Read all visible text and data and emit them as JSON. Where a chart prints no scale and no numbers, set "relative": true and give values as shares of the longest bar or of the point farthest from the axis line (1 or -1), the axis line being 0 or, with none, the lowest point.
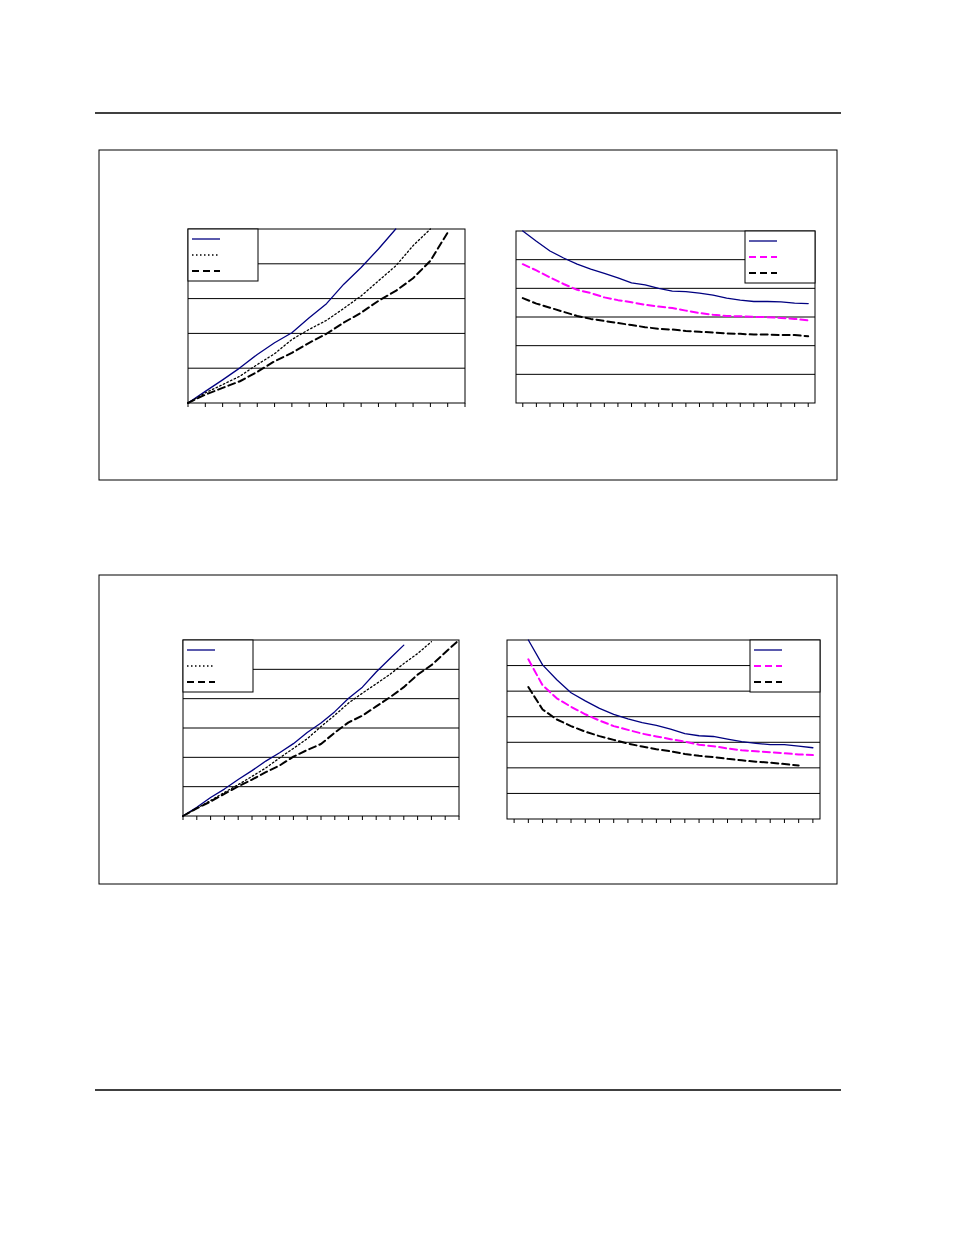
{
  "chart_data": [
    {
      "type": "line",
      "relative": true,
      "grid": "y",
      "categories": [
        null,
        null,
        null,
        null,
        null,
        null,
        null,
        null,
        null,
        null,
        null,
        null,
        null,
        null,
        null,
        null,
        null
      ],
      "series": [
        {
          "color": "#000080",
          "line_style": "solid",
          "values": [
            0,
            0.067,
            0.133,
            0.202,
            0.279,
            0.346,
            0.404,
            0.49,
            0.571,
            0.683,
            0.779,
            0.885,
            1.0,
            null,
            null,
            null,
            null
          ]
        },
        {
          "color": "#000000",
          "line_style": "dotted",
          "values": [
            0,
            0.058,
            0.106,
            0.154,
            0.221,
            0.283,
            0.365,
            0.423,
            0.475,
            0.544,
            0.615,
            0.702,
            0.788,
            0.904,
            1.0,
            null,
            null
          ]
        },
        {
          "color": "#000000",
          "line_style": "dashed",
          "values": [
            0,
            0.048,
            0.087,
            0.125,
            0.179,
            0.24,
            0.288,
            0.346,
            0.398,
            0.462,
            0.519,
            0.587,
            0.644,
            0.717,
            0.817,
            0.98,
            null
          ]
        }
      ]
    },
    {
      "type": "line",
      "relative": true,
      "grid": "y",
      "categories": [
        null,
        null,
        null,
        null,
        null,
        null,
        null,
        null,
        null,
        null,
        null,
        null,
        null,
        null,
        null,
        null,
        null,
        null,
        null,
        null,
        null,
        null
      ],
      "series": [
        {
          "color": "#000080",
          "line_style": "solid",
          "values": [
            1,
            0.94,
            0.884,
            0.843,
            0.807,
            0.778,
            0.754,
            0.728,
            0.699,
            0.687,
            0.667,
            0.651,
            0.648,
            0.639,
            0.627,
            0.61,
            0.598,
            0.59,
            0.59,
            0.588,
            0.581,
            0.578
          ]
        },
        {
          "color": "#ff00ff",
          "line_style": "dashed",
          "values": [
            0.807,
            0.771,
            0.73,
            0.692,
            0.658,
            0.639,
            0.614,
            0.598,
            0.586,
            0.571,
            0.561,
            0.552,
            0.537,
            0.523,
            0.513,
            0.506,
            0.504,
            0.501,
            0.499,
            0.494,
            0.489,
            0.48
          ]
        },
        {
          "color": "#000000",
          "line_style": "dashed",
          "values": [
            0.61,
            0.578,
            0.554,
            0.53,
            0.506,
            0.489,
            0.477,
            0.465,
            0.453,
            0.441,
            0.431,
            0.427,
            0.419,
            0.414,
            0.41,
            0.405,
            0.402,
            0.398,
            0.398,
            0.395,
            0.395,
            0.388
          ]
        }
      ]
    },
    {
      "type": "line",
      "relative": true,
      "grid": "y",
      "categories": [
        null,
        null,
        null,
        null,
        null,
        null,
        null,
        null,
        null,
        null,
        null,
        null,
        null,
        null,
        null,
        null,
        null,
        null,
        null,
        null,
        null
      ],
      "series": [
        {
          "color": "#000080",
          "line_style": "solid",
          "values": [
            0,
            0.05,
            0.105,
            0.153,
            0.207,
            0.258,
            0.312,
            0.359,
            0.411,
            0.474,
            0.528,
            0.593,
            0.669,
            0.732,
            0.818,
            0.895,
            0.971,
            null,
            null,
            null,
            null
          ]
        },
        {
          "color": "#000000",
          "line_style": "dotted",
          "values": [
            0,
            0.044,
            0.088,
            0.134,
            0.178,
            0.225,
            0.273,
            0.33,
            0.384,
            0.439,
            0.508,
            0.573,
            0.642,
            0.698,
            0.751,
            0.805,
            0.866,
            0.923,
            0.99,
            null,
            null
          ]
        },
        {
          "color": "#000000",
          "line_style": "dashed",
          "values": [
            0,
            0.044,
            0.082,
            0.126,
            0.168,
            0.207,
            0.249,
            0.287,
            0.337,
            0.375,
            0.409,
            0.474,
            0.532,
            0.57,
            0.623,
            0.675,
            0.732,
            0.803,
            0.857,
            0.929,
            1.0
          ]
        }
      ]
    },
    {
      "type": "line",
      "relative": true,
      "grid": "y",
      "categories": [
        null,
        null,
        null,
        null,
        null,
        null,
        null,
        null,
        null,
        null,
        null,
        null,
        null,
        null,
        null,
        null,
        null,
        null,
        null,
        null,
        null,
        null
      ],
      "series": [
        {
          "color": "#000080",
          "line_style": "solid",
          "values": [
            null,
            1,
            0.861,
            0.778,
            0.705,
            0.66,
            0.618,
            0.585,
            0.56,
            0.539,
            0.523,
            0.502,
            0.477,
            0.465,
            0.461,
            0.446,
            0.432,
            0.423,
            0.415,
            0.415,
            0.407,
            0.398
          ]
        },
        {
          "color": "#ff00ff",
          "line_style": "dashed",
          "values": [
            null,
            0.892,
            0.747,
            0.674,
            0.627,
            0.585,
            0.55,
            0.519,
            0.498,
            0.477,
            0.461,
            0.446,
            0.432,
            0.415,
            0.407,
            0.394,
            0.384,
            0.378,
            0.373,
            0.367,
            0.361,
            0.357
          ]
        },
        {
          "color": "#000000",
          "line_style": "dashed",
          "values": [
            null,
            0.737,
            0.612,
            0.556,
            0.519,
            0.488,
            0.463,
            0.442,
            0.421,
            0.405,
            0.39,
            0.378,
            0.363,
            0.353,
            0.346,
            0.336,
            0.328,
            0.32,
            0.315,
            0.307,
            0.299,
            null
          ]
        }
      ]
    }
  ]
}
